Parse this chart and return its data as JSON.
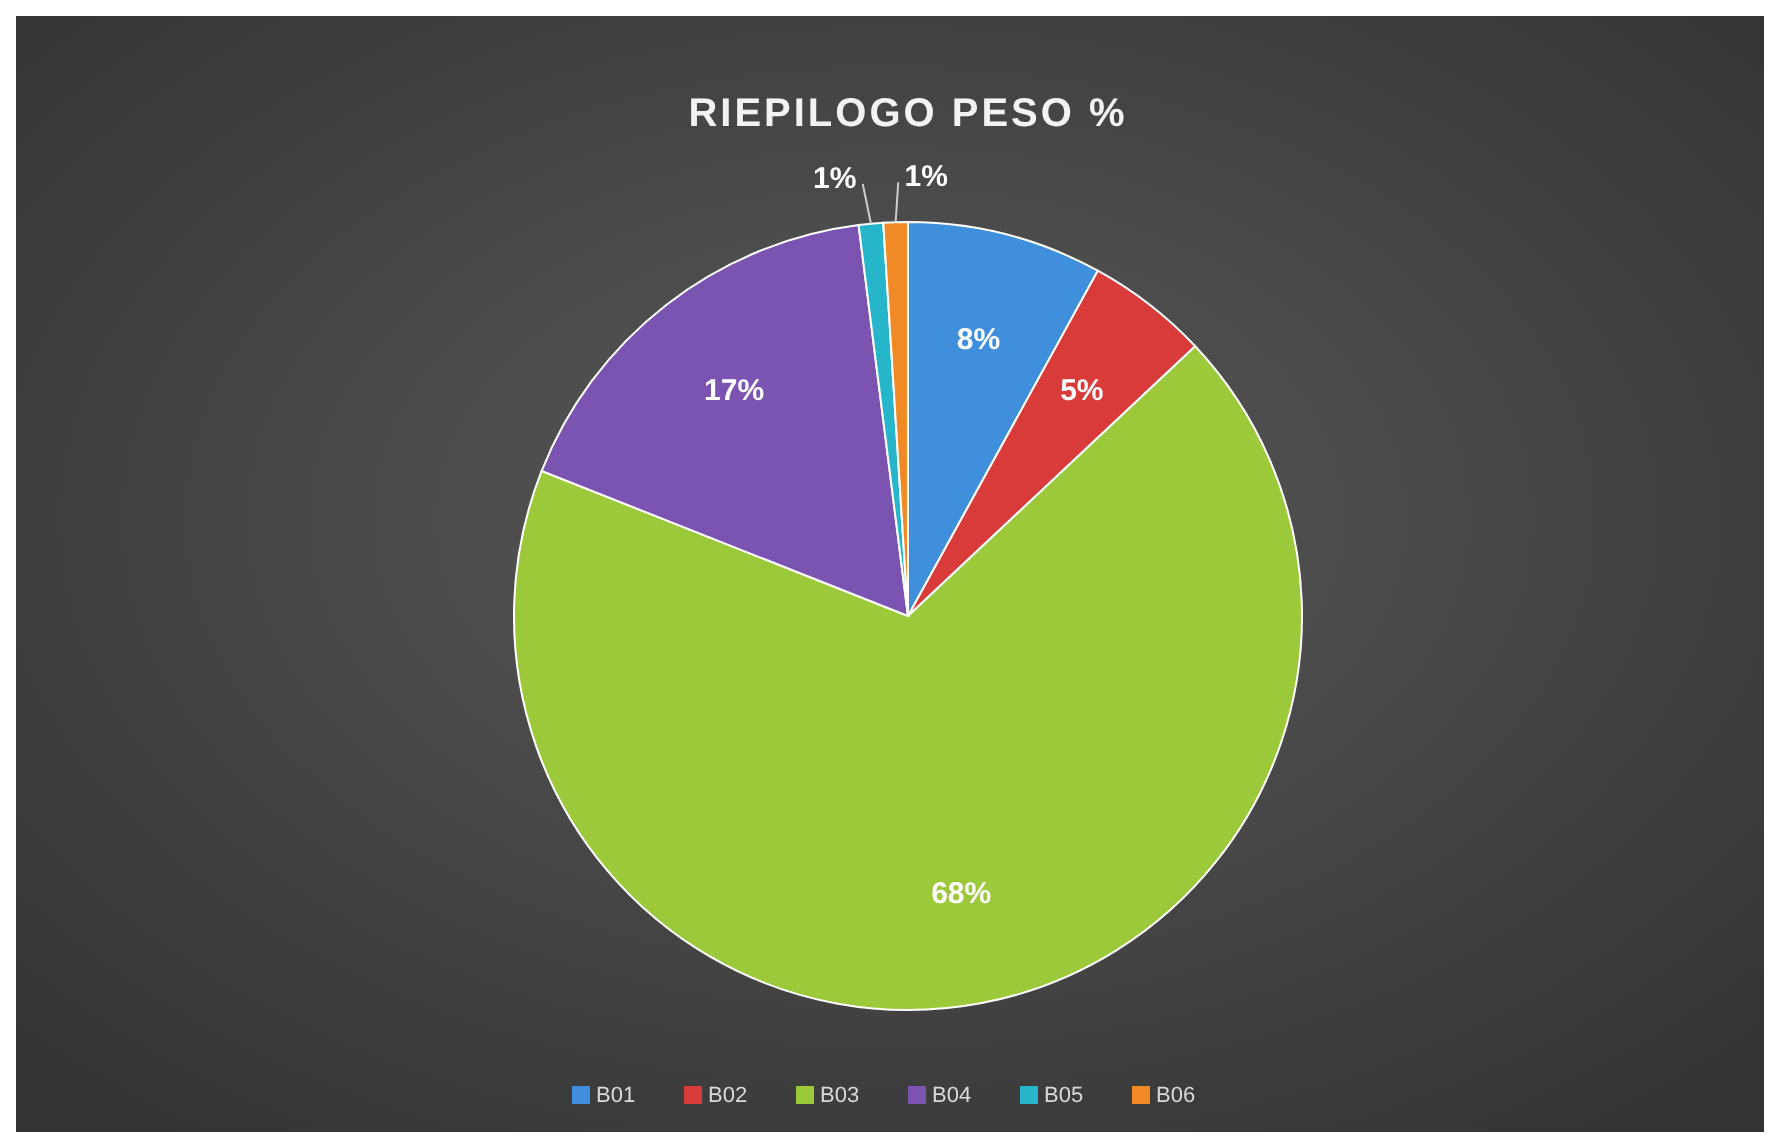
{
  "chart_data": {
    "type": "pie",
    "title": "RIEPILOGO PESO %",
    "categories": [
      "B01",
      "B02",
      "B03",
      "B04",
      "B05",
      "B06"
    ],
    "values": [
      8,
      5,
      68,
      17,
      1,
      1
    ],
    "colors": [
      "#3f8fdc",
      "#d93b3b",
      "#9bc93a",
      "#7a54b0",
      "#27b5c9",
      "#f08a24"
    ],
    "value_labels": [
      "8%",
      "5%",
      "68%",
      "17%",
      "1%",
      "1%"
    ],
    "legend": "bottom"
  }
}
